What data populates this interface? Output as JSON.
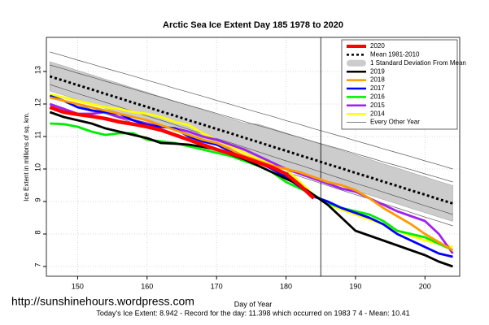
{
  "chart_data": {
    "type": "line",
    "title": "Arctic Sea Ice Extent Day 185 1978 to 2020",
    "x_label": "Day of Year",
    "y_label": "Ice Extent in millions of sq. km.",
    "footer": "Today's Ice Extent: 8.942  - Record for the day: 11.398 which occurred on 1983 7 4  - Mean: 10.41",
    "watermark": "http://sunshinehours.wordpress.com",
    "x": [
      146,
      148,
      150,
      152,
      154,
      156,
      158,
      160,
      162,
      164,
      166,
      168,
      170,
      172,
      174,
      176,
      178,
      180,
      182,
      184,
      186,
      188,
      190,
      192,
      194,
      196,
      198,
      200,
      202,
      204
    ],
    "xlim": [
      145.5,
      205
    ],
    "ylim": [
      6.7,
      14.05
    ],
    "xticks": [
      150,
      160,
      170,
      180,
      190,
      200
    ],
    "yticks": [
      7,
      8,
      9,
      10,
      11,
      12,
      13
    ],
    "grid": true,
    "vline": 185,
    "legend": "top-right",
    "series": [
      {
        "name": "2020",
        "color": "#ff0000",
        "values": [
          11.9,
          11.75,
          11.68,
          11.62,
          11.55,
          11.45,
          11.38,
          11.3,
          11.2,
          11.05,
          10.9,
          10.75,
          10.6,
          10.48,
          10.35,
          10.2,
          10.05,
          9.85,
          9.5,
          9.1,
          null,
          null,
          null,
          null,
          null,
          null,
          null,
          null,
          null,
          null
        ]
      },
      {
        "name": "Mean 1981-2010",
        "color": "#000000",
        "dashed": true,
        "values": [
          12.85,
          12.72,
          12.58,
          12.45,
          12.31,
          12.18,
          12.04,
          11.91,
          11.77,
          11.64,
          11.5,
          11.37,
          11.23,
          11.1,
          10.96,
          10.83,
          10.69,
          10.56,
          10.42,
          10.29,
          10.15,
          10.02,
          9.88,
          9.75,
          9.61,
          9.48,
          9.34,
          9.21,
          9.07,
          8.94
        ]
      },
      {
        "name": "2019",
        "color": "#000000",
        "values": [
          11.75,
          11.6,
          11.5,
          11.4,
          11.25,
          11.15,
          11.05,
          10.95,
          10.8,
          10.78,
          10.75,
          10.68,
          10.6,
          10.45,
          10.3,
          10.1,
          9.9,
          9.7,
          9.5,
          9.2,
          8.9,
          8.5,
          8.1,
          7.95,
          7.8,
          7.65,
          7.5,
          7.35,
          7.15,
          7.0
        ]
      },
      {
        "name": "2018",
        "color": "#ff9900",
        "values": [
          12.2,
          12.1,
          12.0,
          11.9,
          11.8,
          11.7,
          11.6,
          11.5,
          11.35,
          11.2,
          11.05,
          10.9,
          10.8,
          10.6,
          10.4,
          10.25,
          10.1,
          10.0,
          9.9,
          9.75,
          9.6,
          9.5,
          9.35,
          9.1,
          8.8,
          8.55,
          8.3,
          8.0,
          7.75,
          7.5
        ]
      },
      {
        "name": "2017",
        "color": "#0000ff",
        "values": [
          12.25,
          12.1,
          11.9,
          11.8,
          11.75,
          11.7,
          11.5,
          11.35,
          11.3,
          11.25,
          11.0,
          10.85,
          10.75,
          10.55,
          10.4,
          10.2,
          10.0,
          9.75,
          9.45,
          9.15,
          9.0,
          8.8,
          8.65,
          8.5,
          8.3,
          8.0,
          7.8,
          7.6,
          7.4,
          7.3
        ]
      },
      {
        "name": "2016",
        "color": "#00ee00",
        "values": [
          11.4,
          11.38,
          11.3,
          11.15,
          11.05,
          11.1,
          11.1,
          10.9,
          10.85,
          10.8,
          10.7,
          10.6,
          10.5,
          10.4,
          10.25,
          10.1,
          9.9,
          9.6,
          9.4,
          9.2,
          8.95,
          8.8,
          8.7,
          8.6,
          8.4,
          8.1,
          8.0,
          7.9,
          7.7,
          7.5
        ]
      },
      {
        "name": "2015",
        "color": "#a020f0",
        "values": [
          12.0,
          11.85,
          11.7,
          11.7,
          11.75,
          11.6,
          11.5,
          11.4,
          11.3,
          11.25,
          11.15,
          11.0,
          10.9,
          10.75,
          10.6,
          10.4,
          10.2,
          10.0,
          9.85,
          9.7,
          9.55,
          9.4,
          9.3,
          9.1,
          8.9,
          8.7,
          8.55,
          8.4,
          8.0,
          7.4
        ]
      },
      {
        "name": "2014",
        "color": "#ffff00",
        "values": [
          12.3,
          12.2,
          12.1,
          12.0,
          11.9,
          11.85,
          11.75,
          11.7,
          11.6,
          11.45,
          11.35,
          11.1,
          10.9,
          10.7,
          10.5,
          10.3,
          10.15,
          10.0,
          9.6,
          9.2,
          8.9,
          8.75,
          8.6,
          8.45,
          8.3,
          8.1,
          7.95,
          7.8,
          7.7,
          7.6
        ]
      }
    ],
    "band": {
      "name": "1 Standard Deviation From Mean",
      "color": "#cccccc",
      "lower": [
        12.4,
        12.27,
        12.13,
        12.0,
        11.86,
        11.73,
        11.59,
        11.46,
        11.32,
        11.19,
        11.05,
        10.92,
        10.78,
        10.65,
        10.51,
        10.28,
        10.14,
        10.01,
        9.87,
        9.74,
        9.6,
        9.47,
        9.33,
        9.2,
        9.06,
        8.93,
        8.79,
        8.66,
        8.52,
        8.39
      ],
      "upper": [
        13.3,
        13.17,
        13.03,
        12.9,
        12.76,
        12.63,
        12.49,
        12.36,
        12.22,
        12.09,
        11.95,
        11.82,
        11.68,
        11.55,
        11.41,
        11.38,
        11.24,
        11.11,
        10.97,
        10.84,
        10.7,
        10.57,
        10.43,
        10.3,
        10.16,
        10.03,
        9.89,
        9.76,
        9.62,
        9.49
      ]
    },
    "other_years": {
      "name": "Every Other Year",
      "color": "#555555",
      "lines": [
        [
          13.6,
          13.48,
          13.35,
          13.23,
          13.1,
          12.98,
          12.86,
          12.73,
          12.61,
          12.48,
          12.36,
          12.24,
          12.11,
          11.99,
          11.86,
          11.74,
          11.62,
          11.49,
          11.37,
          11.24,
          11.12,
          11.0,
          10.87,
          10.75,
          10.62,
          10.5,
          10.38,
          10.25,
          10.13,
          10.0
        ],
        [
          13.2,
          13.08,
          12.95,
          12.83,
          12.7,
          12.58,
          12.46,
          12.33,
          12.21,
          12.08,
          11.96,
          11.84,
          11.71,
          11.59,
          11.46,
          11.34,
          11.22,
          11.09,
          10.97,
          10.84,
          10.72,
          10.6,
          10.47,
          10.35,
          10.22,
          10.1,
          9.98,
          9.85,
          9.73,
          9.6
        ],
        [
          12.6,
          12.46,
          12.32,
          12.19,
          12.05,
          11.91,
          11.77,
          11.63,
          11.5,
          11.36,
          11.22,
          11.08,
          10.94,
          10.81,
          10.67,
          10.53,
          10.39,
          10.25,
          10.12,
          9.98,
          9.84,
          9.7,
          9.56,
          9.43,
          9.29,
          9.15,
          9.01,
          8.87,
          8.74,
          8.6
        ],
        [
          12.25,
          12.11,
          11.97,
          11.84,
          11.7,
          11.56,
          11.42,
          11.28,
          11.15,
          11.01,
          10.87,
          10.73,
          10.59,
          10.46,
          10.32,
          10.18,
          10.04,
          9.9,
          9.77,
          9.63,
          9.49,
          9.35,
          9.21,
          9.08,
          8.94,
          8.8,
          8.66,
          8.52,
          8.39,
          8.25
        ]
      ]
    }
  }
}
